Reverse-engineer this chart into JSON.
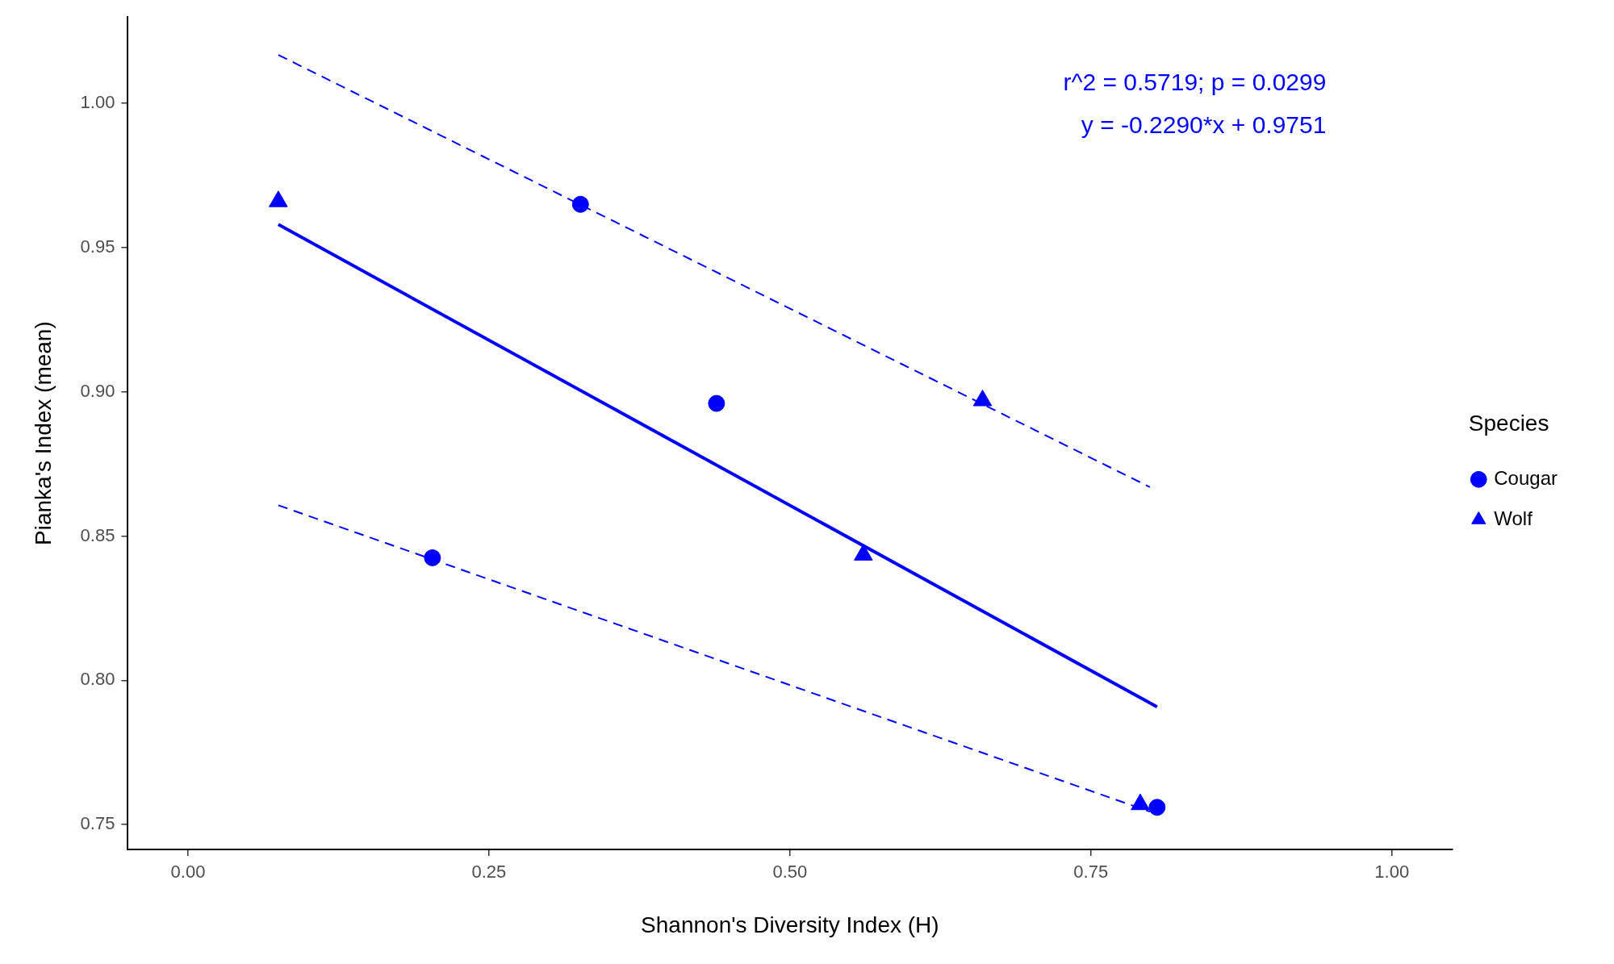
{
  "chart_data": {
    "type": "scatter",
    "xlabel": "Shannon's Diversity Index (H)",
    "ylabel": "Pianka's Index (mean)",
    "legend_title": "Species",
    "series": [
      {
        "name": "Cougar",
        "type": "scatter",
        "marker": "circle",
        "color": "#0000ff",
        "x": [
          0.326,
          0.439,
          0.203,
          0.805
        ],
        "values": [
          0.965,
          0.896,
          0.8425,
          0.756
        ]
      },
      {
        "name": "Wolf",
        "type": "scatter",
        "marker": "triangle",
        "color": "#0000ff",
        "x": [
          0.075,
          0.66,
          0.561,
          0.791
        ],
        "values": [
          0.966,
          0.897,
          0.8435,
          0.757
        ]
      },
      {
        "type": "line",
        "line_style": "solid",
        "color": "#0000ff",
        "x": [
          0.075,
          0.805
        ],
        "values": [
          0.958,
          0.7908
        ]
      },
      {
        "type": "line",
        "line_style": "dashed",
        "color": "#0000ff",
        "x": [
          0.075,
          0.799
        ],
        "values": [
          1.0168,
          0.867
        ]
      },
      {
        "type": "line",
        "line_style": "dashed",
        "color": "#0000ff",
        "x": [
          0.075,
          0.799
        ],
        "values": [
          0.8607,
          0.7545
        ]
      }
    ],
    "xlim": [
      -0.05,
      1.05
    ],
    "xticks": [
      {
        "value": 0,
        "label": "0.00"
      },
      {
        "value": 0.25,
        "label": "0.25"
      },
      {
        "value": 0.5,
        "label": "0.50"
      },
      {
        "value": 0.75,
        "label": "0.75"
      },
      {
        "value": 1,
        "label": "1.00"
      }
    ],
    "ylim": [
      0.7414,
      1.0299
    ],
    "yticks": [
      {
        "value": 0.75,
        "label": "0.75"
      },
      {
        "value": 0.8,
        "label": "0.80"
      },
      {
        "value": 0.85,
        "label": "0.85"
      },
      {
        "value": 0.9,
        "label": "0.90"
      },
      {
        "value": 0.95,
        "label": "0.95"
      },
      {
        "value": 1,
        "label": "1.00"
      }
    ],
    "annotations": [
      "r^2 = 0.5719; p = 0.0299",
      "y = -0.2290*x + 0.9751"
    ],
    "grid": false,
    "legend": "right"
  }
}
